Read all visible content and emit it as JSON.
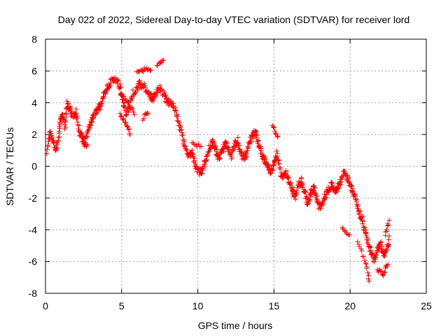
{
  "chart_data": {
    "type": "scatter",
    "title": "Day 022 of 2022, Sidereal Day-to-day VTEC variation (SDTVAR) for receiver lord",
    "xlabel": "GPS time / hours",
    "ylabel": "SDTVAR / TECUs",
    "xlim": [
      0,
      25
    ],
    "ylim": [
      -8,
      8
    ],
    "xticks": [
      0,
      5,
      10,
      15,
      20,
      25
    ],
    "yticks": [
      -8,
      -6,
      -4,
      -2,
      0,
      2,
      4,
      6,
      8
    ],
    "xtick_labels": [
      "0",
      "5",
      "10",
      "15",
      "20",
      "25"
    ],
    "ytick_labels": [
      "-8",
      "-6",
      "-4",
      "-2",
      "0",
      "2",
      "4",
      "6",
      "8"
    ],
    "grid": true,
    "legend": "none",
    "marker": "+",
    "series": [
      {
        "name": "SDTVAR",
        "color": "#ff0000",
        "trace": [
          [
            0.1,
            1.0
          ],
          [
            0.3,
            2.2
          ],
          [
            0.5,
            1.5
          ],
          [
            0.7,
            1.0
          ],
          [
            0.9,
            2.0
          ],
          [
            1.0,
            3.0
          ],
          [
            1.1,
            3.2
          ],
          [
            1.3,
            2.5
          ],
          [
            1.4,
            3.9
          ],
          [
            1.6,
            3.7
          ],
          [
            1.8,
            3.1
          ],
          [
            2.0,
            3.5
          ],
          [
            2.2,
            2.2
          ],
          [
            2.4,
            1.8
          ],
          [
            2.6,
            1.5
          ],
          [
            2.8,
            2.4
          ],
          [
            3.0,
            2.8
          ],
          [
            3.2,
            3.2
          ],
          [
            3.4,
            3.6
          ],
          [
            3.6,
            3.8
          ],
          [
            3.8,
            4.5
          ],
          [
            4.0,
            4.8
          ],
          [
            4.2,
            5.2
          ],
          [
            4.5,
            5.5
          ],
          [
            4.8,
            5.3
          ],
          [
            5.0,
            4.6
          ],
          [
            5.1,
            4.0
          ],
          [
            5.3,
            3.3
          ],
          [
            5.5,
            3.8
          ],
          [
            5.7,
            4.5
          ],
          [
            6.0,
            4.8
          ],
          [
            6.2,
            5.2
          ],
          [
            6.5,
            5.0
          ],
          [
            6.8,
            4.6
          ],
          [
            7.0,
            4.2
          ],
          [
            7.2,
            4.6
          ],
          [
            7.5,
            5.0
          ],
          [
            7.8,
            4.4
          ],
          [
            8.0,
            4.1
          ],
          [
            8.3,
            3.9
          ],
          [
            8.6,
            3.3
          ],
          [
            8.8,
            2.6
          ],
          [
            9.0,
            1.8
          ],
          [
            9.2,
            1.0
          ],
          [
            9.4,
            0.6
          ],
          [
            9.6,
            0.9
          ],
          [
            9.8,
            0.2
          ],
          [
            10.0,
            -0.3
          ],
          [
            10.2,
            -0.4
          ],
          [
            10.4,
            0.1
          ],
          [
            10.6,
            0.6
          ],
          [
            10.8,
            1.3
          ],
          [
            11.0,
            1.6
          ],
          [
            11.2,
            0.9
          ],
          [
            11.4,
            0.5
          ],
          [
            11.6,
            0.9
          ],
          [
            11.8,
            1.4
          ],
          [
            12.0,
            1.1
          ],
          [
            12.2,
            0.6
          ],
          [
            12.4,
            1.3
          ],
          [
            12.6,
            1.6
          ],
          [
            12.8,
            1.0
          ],
          [
            13.0,
            0.5
          ],
          [
            13.2,
            0.8
          ],
          [
            13.4,
            1.5
          ],
          [
            13.6,
            1.9
          ],
          [
            13.8,
            2.1
          ],
          [
            14.0,
            1.4
          ],
          [
            14.2,
            0.8
          ],
          [
            14.4,
            0.4
          ],
          [
            14.6,
            0.0
          ],
          [
            14.8,
            -0.4
          ],
          [
            15.0,
            0.2
          ],
          [
            15.2,
            0.8
          ],
          [
            15.4,
            -0.3
          ],
          [
            15.6,
            -0.7
          ],
          [
            15.8,
            -0.3
          ],
          [
            16.0,
            -1.0
          ],
          [
            16.2,
            -1.5
          ],
          [
            16.4,
            -2.0
          ],
          [
            16.6,
            -1.2
          ],
          [
            16.8,
            -0.9
          ],
          [
            17.0,
            -1.6
          ],
          [
            17.2,
            -2.3
          ],
          [
            17.4,
            -1.8
          ],
          [
            17.6,
            -1.3
          ],
          [
            17.8,
            -2.1
          ],
          [
            18.0,
            -2.7
          ],
          [
            18.2,
            -2.2
          ],
          [
            18.4,
            -1.8
          ],
          [
            18.6,
            -1.4
          ],
          [
            18.8,
            -1.2
          ],
          [
            19.0,
            -1.5
          ],
          [
            19.2,
            -1.3
          ],
          [
            19.4,
            -0.9
          ],
          [
            19.6,
            -0.3
          ],
          [
            19.8,
            -0.7
          ],
          [
            20.0,
            -1.2
          ],
          [
            20.2,
            -1.6
          ],
          [
            20.4,
            -2.2
          ],
          [
            20.6,
            -2.9
          ],
          [
            20.8,
            -3.4
          ],
          [
            21.0,
            -4.1
          ],
          [
            21.2,
            -4.8
          ],
          [
            21.4,
            -5.6
          ],
          [
            21.6,
            -5.9
          ],
          [
            21.8,
            -5.2
          ],
          [
            22.0,
            -4.9
          ],
          [
            22.2,
            -5.6
          ],
          [
            22.4,
            -5.2
          ],
          [
            22.6,
            -4.5
          ]
        ],
        "offshoots": [
          [
            [
              4.9,
              4.6
            ],
            [
              5.4,
              4.0
            ],
            [
              5.9,
              3.2
            ]
          ],
          [
            [
              4.9,
              3.2
            ],
            [
              5.3,
              2.6
            ],
            [
              5.6,
              2.0
            ]
          ],
          [
            [
              6.4,
              3.0
            ],
            [
              6.8,
              3.5
            ]
          ],
          [
            [
              6.0,
              5.9
            ],
            [
              6.5,
              6.1
            ],
            [
              7.0,
              6.0
            ]
          ],
          [
            [
              7.3,
              6.4
            ],
            [
              7.8,
              6.7
            ]
          ],
          [
            [
              2.4,
              1.5
            ],
            [
              2.8,
              1.2
            ]
          ],
          [
            [
              9.6,
              1.4
            ],
            [
              10.3,
              1.3
            ]
          ],
          [
            [
              14.9,
              2.5
            ],
            [
              15.3,
              1.8
            ]
          ],
          [
            [
              19.5,
              -4.0
            ],
            [
              20.0,
              -4.3
            ]
          ],
          [
            [
              20.5,
              -4.8
            ],
            [
              21.0,
              -6.0
            ],
            [
              21.3,
              -7.4
            ]
          ],
          [
            [
              21.8,
              -6.5
            ],
            [
              22.2,
              -6.8
            ],
            [
              22.5,
              -6.0
            ]
          ],
          [
            [
              22.3,
              -4.3
            ],
            [
              22.6,
              -3.4
            ]
          ]
        ]
      }
    ]
  }
}
